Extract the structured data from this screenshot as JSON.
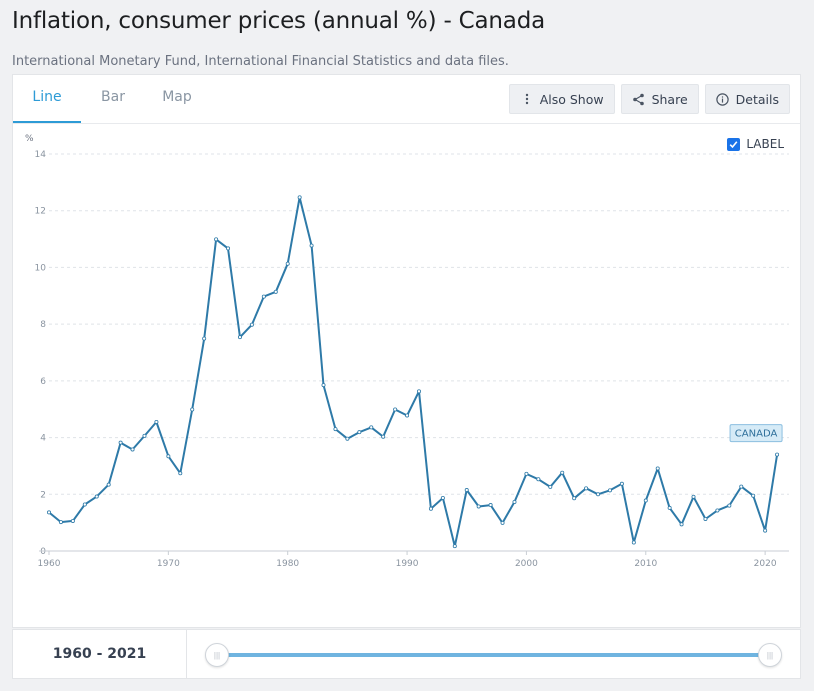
{
  "page": {
    "title": "Inflation, consumer prices (annual %) - Canada",
    "subtitle": "International Monetary Fund, International Financial Statistics and data files."
  },
  "tabs": [
    {
      "label": "Line",
      "active": true
    },
    {
      "label": "Bar",
      "active": false
    },
    {
      "label": "Map",
      "active": false
    }
  ],
  "actions": {
    "also_show": "Also Show",
    "share": "Share",
    "details": "Details"
  },
  "label_toggle": {
    "label": "LABEL",
    "checked": true
  },
  "colors": {
    "accent": "#2d9bd6",
    "line": "#2e7aa8",
    "label_bg": "#d6ebf7"
  },
  "chart_data": {
    "type": "line",
    "title": "",
    "xlabel": "",
    "ylabel": "%",
    "ylim": [
      0,
      14
    ],
    "xlim": [
      1960,
      2022
    ],
    "y_ticks": [
      0,
      2,
      4,
      6,
      8,
      10,
      12,
      14
    ],
    "x_ticks": [
      1960,
      1970,
      1980,
      1990,
      2000,
      2010,
      2020
    ],
    "grid": true,
    "series": [
      {
        "name": "CANADA",
        "x": [
          1960,
          1961,
          1962,
          1963,
          1964,
          1965,
          1966,
          1967,
          1968,
          1969,
          1970,
          1971,
          1972,
          1973,
          1974,
          1975,
          1976,
          1977,
          1978,
          1979,
          1980,
          1981,
          1982,
          1983,
          1984,
          1985,
          1986,
          1987,
          1988,
          1989,
          1990,
          1991,
          1992,
          1993,
          1994,
          1995,
          1996,
          1997,
          1998,
          1999,
          2000,
          2001,
          2002,
          2003,
          2004,
          2005,
          2006,
          2007,
          2008,
          2009,
          2010,
          2011,
          2012,
          2013,
          2014,
          2015,
          2016,
          2017,
          2018,
          2019,
          2020,
          2021
        ],
        "values": [
          1.36,
          1.02,
          1.06,
          1.64,
          1.92,
          2.34,
          3.82,
          3.58,
          4.06,
          4.55,
          3.34,
          2.74,
          4.99,
          7.49,
          10.99,
          10.67,
          7.54,
          7.98,
          8.97,
          9.14,
          10.13,
          12.47,
          10.77,
          5.85,
          4.3,
          3.96,
          4.19,
          4.36,
          4.03,
          4.99,
          4.78,
          5.63,
          1.49,
          1.87,
          0.17,
          2.15,
          1.57,
          1.62,
          0.99,
          1.73,
          2.72,
          2.53,
          2.26,
          2.76,
          1.86,
          2.21,
          2.0,
          2.14,
          2.37,
          0.3,
          1.78,
          2.91,
          1.52,
          0.94,
          1.91,
          1.13,
          1.43,
          1.6,
          2.27,
          1.95,
          0.72,
          3.4
        ]
      }
    ]
  },
  "footer": {
    "range_label": "1960 - 2021",
    "range_start": 1960,
    "range_end": 2021
  }
}
